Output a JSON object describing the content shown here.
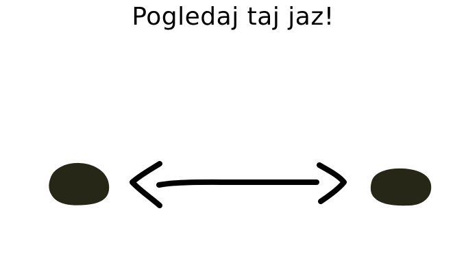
{
  "title": "Pogledaj taj jaz!",
  "colors": {
    "background": "#ffffff",
    "blob_fill": "#272717",
    "arrow_stroke": "#000000",
    "text": "#000000"
  },
  "elements": {
    "left_shape": "blob",
    "right_shape": "blob",
    "connector": "double-headed-arrow"
  }
}
